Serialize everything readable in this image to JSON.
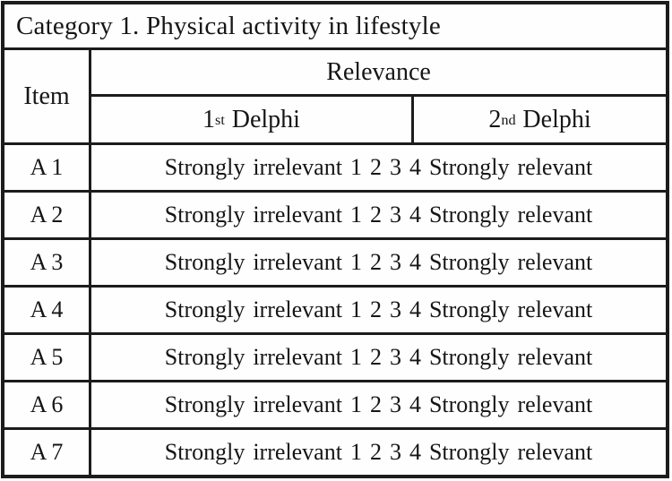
{
  "table": {
    "title": "Category 1. Physical activity in lifestyle",
    "header": {
      "item_label": "Item",
      "relevance_label": "Relevance",
      "col1": {
        "num": "1",
        "sup": "st",
        "name": "Delphi"
      },
      "col2": {
        "num": "2",
        "sup": "nd",
        "name": "Delphi"
      }
    },
    "rows": [
      {
        "item": "A 1",
        "scale": "Strongly irrelevant 1 2 3 4 Strongly relevant"
      },
      {
        "item": "A 2",
        "scale": "Strongly irrelevant 1 2 3 4 Strongly relevant"
      },
      {
        "item": "A 3",
        "scale": "Strongly irrelevant 1 2 3 4 Strongly relevant"
      },
      {
        "item": "A 4",
        "scale": "Strongly irrelevant 1 2 3 4 Strongly relevant"
      },
      {
        "item": "A 5",
        "scale": "Strongly irrelevant 1 2 3 4 Strongly relevant"
      },
      {
        "item": "A 6",
        "scale": "Strongly irrelevant 1 2 3 4 Strongly relevant"
      },
      {
        "item": "A 7",
        "scale": "Strongly irrelevant 1 2 3 4 Strongly relevant"
      }
    ],
    "colors": {
      "border": "#1c1c1c",
      "text": "#161616",
      "background": "#fefefe"
    }
  }
}
